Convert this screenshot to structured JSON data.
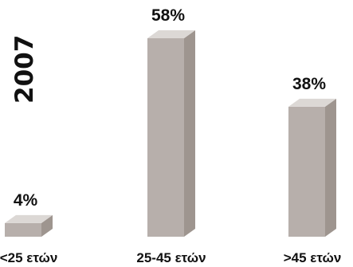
{
  "year_label": "2007",
  "colors": {
    "front": "#b7afab",
    "side": "#9e958f",
    "top": "#dcd8d5"
  },
  "chart_data": {
    "type": "bar",
    "title": "2007",
    "categories": [
      "<25 ετών",
      "25-45 ετών",
      ">45 ετών"
    ],
    "values": [
      4,
      58,
      38
    ],
    "value_labels": [
      "4%",
      "58%",
      "38%"
    ],
    "unit": "%",
    "ylim": [
      0,
      58
    ],
    "grid": false,
    "legend": "none",
    "style": "3d-bars"
  }
}
